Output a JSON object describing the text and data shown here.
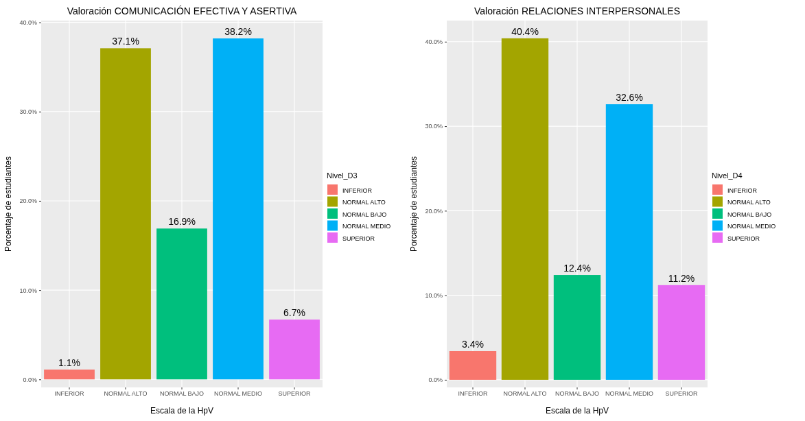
{
  "chart_data": [
    {
      "type": "bar",
      "title": "Valoración COMUNICACIÓN EFECTIVA Y ASERTIVA",
      "xlabel": "Escala de la HpV",
      "ylabel": "Porcentaje de estudiantes",
      "legend_title": "Nivel_D3",
      "legend": "right",
      "grid": true,
      "categories": [
        "INFERIOR",
        "NORMAL ALTO",
        "NORMAL BAJO",
        "NORMAL MEDIO",
        "SUPERIOR"
      ],
      "series": [
        {
          "name": "INFERIOR",
          "color": "#f8766d",
          "values": [
            1.1,
            null,
            null,
            null,
            null
          ],
          "value_labels": [
            "1.1%",
            null,
            null,
            null,
            null
          ]
        },
        {
          "name": "NORMAL ALTO",
          "color": "#a3a500",
          "values": [
            null,
            37.1,
            null,
            null,
            null
          ],
          "value_labels": [
            null,
            "37.1%",
            null,
            null,
            null
          ]
        },
        {
          "name": "NORMAL BAJO",
          "color": "#00bf7d",
          "values": [
            null,
            null,
            16.9,
            null,
            null
          ],
          "value_labels": [
            null,
            null,
            "16.9%",
            null,
            null
          ]
        },
        {
          "name": "NORMAL MEDIO",
          "color": "#00b0f6",
          "values": [
            null,
            null,
            null,
            38.2,
            null
          ],
          "value_labels": [
            null,
            null,
            null,
            "38.2%",
            null
          ]
        },
        {
          "name": "SUPERIOR",
          "color": "#e76bf3",
          "values": [
            null,
            null,
            null,
            null,
            6.7
          ],
          "value_labels": [
            null,
            null,
            null,
            null,
            "6.7%"
          ]
        }
      ],
      "ylim": [
        -0.9,
        40.2
      ],
      "yticks": [
        {
          "value": 0,
          "label": "0.0%"
        },
        {
          "value": 10,
          "label": "10.0%"
        },
        {
          "value": 20,
          "label": "20.0%"
        },
        {
          "value": 30,
          "label": "30.0%"
        },
        {
          "value": 40,
          "label": "40.0%"
        }
      ]
    },
    {
      "type": "bar",
      "title": "Valoración RELACIONES INTERPERSONALES",
      "xlabel": "Escala de la HpV",
      "ylabel": "Porcentaje de estudiantes",
      "legend_title": "Nivel_D4",
      "legend": "right",
      "grid": true,
      "categories": [
        "INFERIOR",
        "NORMAL ALTO",
        "NORMAL BAJO",
        "NORMAL MEDIO",
        "SUPERIOR"
      ],
      "series": [
        {
          "name": "INFERIOR",
          "color": "#f8766d",
          "values": [
            3.4,
            null,
            null,
            null,
            null
          ],
          "value_labels": [
            "3.4%",
            null,
            null,
            null,
            null
          ]
        },
        {
          "name": "NORMAL ALTO",
          "color": "#a3a500",
          "values": [
            null,
            40.4,
            null,
            null,
            null
          ],
          "value_labels": [
            null,
            "40.4%",
            null,
            null,
            null
          ]
        },
        {
          "name": "NORMAL BAJO",
          "color": "#00bf7d",
          "values": [
            null,
            null,
            12.4,
            null,
            null
          ],
          "value_labels": [
            null,
            null,
            "12.4%",
            null,
            null
          ]
        },
        {
          "name": "NORMAL MEDIO",
          "color": "#00b0f6",
          "values": [
            null,
            null,
            null,
            32.6,
            null
          ],
          "value_labels": [
            null,
            null,
            null,
            "32.6%",
            null
          ]
        },
        {
          "name": "SUPERIOR",
          "color": "#e76bf3",
          "values": [
            null,
            null,
            null,
            null,
            11.2
          ],
          "value_labels": [
            null,
            null,
            null,
            null,
            "11.2%"
          ]
        }
      ],
      "ylim": [
        -0.9,
        42.5
      ],
      "yticks": [
        {
          "value": 0,
          "label": "0.0%"
        },
        {
          "value": 10,
          "label": "10.0%"
        },
        {
          "value": 20,
          "label": "20.0%"
        },
        {
          "value": 30,
          "label": "30.0%"
        },
        {
          "value": 40,
          "label": "40.0%"
        }
      ]
    }
  ]
}
